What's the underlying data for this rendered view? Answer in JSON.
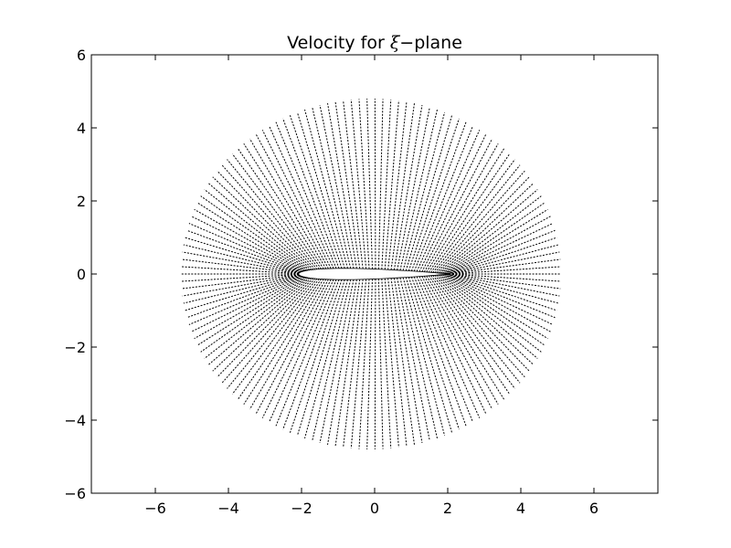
{
  "chart_data": {
    "type": "line",
    "title": {
      "prefix": "Velocity for ",
      "symbol": "ξ",
      "operator": "−",
      "suffix": "plane"
    },
    "xlabel": "",
    "ylabel": "",
    "xlim": [
      -7.75,
      7.75
    ],
    "ylim": [
      -6,
      6
    ],
    "xticks": [
      -6,
      -4,
      -2,
      0,
      2,
      4,
      6
    ],
    "yticks": [
      -6,
      -4,
      -2,
      0,
      2,
      4,
      6
    ],
    "xtick_labels": [
      "−6",
      "−4",
      "−2",
      "0",
      "2",
      "4",
      "6"
    ],
    "ytick_labels": [
      "−6",
      "−4",
      "−2",
      "0",
      "2",
      "4",
      "6"
    ],
    "grid": false,
    "legend": "none",
    "line_color": "#000000",
    "line_style": "dotted",
    "airfoil": {
      "leading_edge": [
        -2.08,
        0.0
      ],
      "trailing_edge": [
        2.04,
        0.0
      ],
      "max_thickness": 0.31,
      "thickness_location": -1.05
    },
    "outer_boundary": {
      "center": [
        -0.1,
        0.0
      ],
      "radius": 5.2,
      "y_extent": [
        -4.8,
        4.8
      ]
    },
    "ray_count": 150
  }
}
